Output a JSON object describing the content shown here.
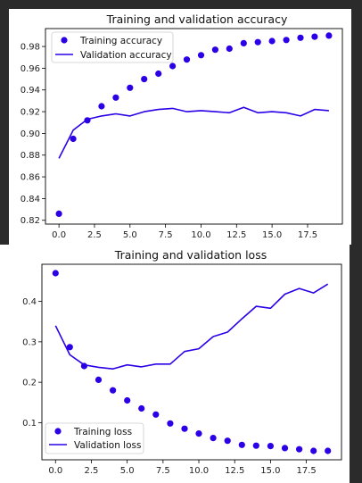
{
  "theme": {
    "series_color": "#2b00e6",
    "panel_bg": "#ffffff",
    "outer_bg": "#2b2b2b"
  },
  "chart_data": [
    {
      "type": "line",
      "title": "Training and validation accuracy",
      "xlabel": "",
      "ylabel": "",
      "x": [
        0,
        1,
        2,
        3,
        4,
        5,
        6,
        7,
        8,
        9,
        10,
        11,
        12,
        13,
        14,
        15,
        16,
        17,
        18,
        19
      ],
      "xlim": [
        -0.95,
        19.95
      ],
      "ylim": [
        0.8165,
        0.9965
      ],
      "xticks": [
        0.0,
        2.5,
        5.0,
        7.5,
        10.0,
        12.5,
        15.0,
        17.5
      ],
      "xtick_labels": [
        "0.0",
        "2.5",
        "5.0",
        "7.5",
        "10.0",
        "12.5",
        "15.0",
        "17.5"
      ],
      "yticks": [
        0.82,
        0.84,
        0.86,
        0.88,
        0.9,
        0.92,
        0.94,
        0.96,
        0.98
      ],
      "ytick_labels": [
        "0.82",
        "0.84",
        "0.86",
        "0.88",
        "0.90",
        "0.92",
        "0.94",
        "0.96",
        "0.98"
      ],
      "legend_position": "top-left",
      "series": [
        {
          "name": "Training accuracy",
          "style": "points",
          "values": [
            0.826,
            0.895,
            0.912,
            0.925,
            0.933,
            0.942,
            0.95,
            0.955,
            0.962,
            0.968,
            0.972,
            0.977,
            0.978,
            0.983,
            0.984,
            0.985,
            0.986,
            0.988,
            0.989,
            0.99
          ]
        },
        {
          "name": "Validation accuracy",
          "style": "line",
          "values": [
            0.877,
            0.903,
            0.913,
            0.916,
            0.918,
            0.916,
            0.92,
            0.922,
            0.923,
            0.92,
            0.921,
            0.92,
            0.919,
            0.924,
            0.919,
            0.92,
            0.919,
            0.916,
            0.922,
            0.921
          ]
        }
      ]
    },
    {
      "type": "line",
      "title": "Training and validation loss",
      "xlabel": "",
      "ylabel": "",
      "x": [
        0,
        1,
        2,
        3,
        4,
        5,
        6,
        7,
        8,
        9,
        10,
        11,
        12,
        13,
        14,
        15,
        16,
        17,
        18,
        19
      ],
      "xlim": [
        -0.95,
        19.95
      ],
      "ylim": [
        0.008,
        0.492
      ],
      "xticks": [
        0.0,
        2.5,
        5.0,
        7.5,
        10.0,
        12.5,
        15.0,
        17.5
      ],
      "xtick_labels": [
        "0.0",
        "2.5",
        "5.0",
        "7.5",
        "10.0",
        "12.5",
        "15.0",
        "17.5"
      ],
      "yticks": [
        0.1,
        0.2,
        0.3,
        0.4
      ],
      "ytick_labels": [
        "0.1",
        "0.2",
        "0.3",
        "0.4"
      ],
      "legend_position": "bottom-left",
      "series": [
        {
          "name": "Training loss",
          "style": "points",
          "values": [
            0.47,
            0.287,
            0.24,
            0.206,
            0.18,
            0.155,
            0.135,
            0.12,
            0.098,
            0.085,
            0.073,
            0.062,
            0.055,
            0.045,
            0.043,
            0.042,
            0.037,
            0.034,
            0.03,
            0.03
          ]
        },
        {
          "name": "Validation loss",
          "style": "line",
          "values": [
            0.34,
            0.268,
            0.243,
            0.237,
            0.233,
            0.243,
            0.238,
            0.245,
            0.245,
            0.276,
            0.283,
            0.313,
            0.324,
            0.357,
            0.388,
            0.383,
            0.418,
            0.432,
            0.421,
            0.443
          ]
        }
      ]
    }
  ]
}
